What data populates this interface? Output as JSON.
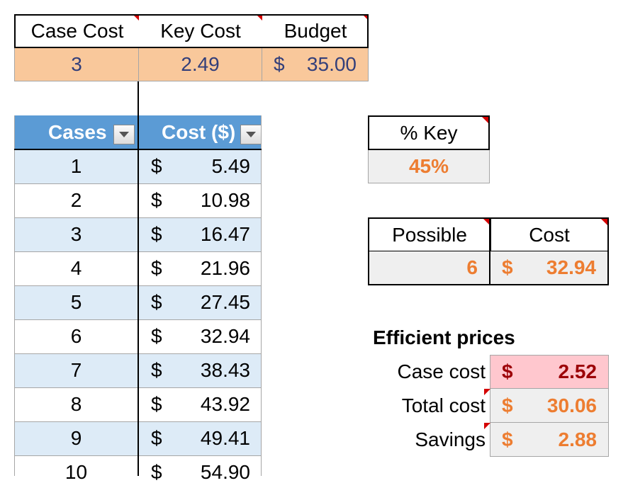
{
  "top_table": {
    "headers": [
      "Case Cost",
      "Key Cost",
      "Budget"
    ],
    "values": {
      "case_cost": "3",
      "key_cost": "2.49",
      "budget_symbol": "$",
      "budget": "35.00"
    }
  },
  "cases_table": {
    "headers": {
      "cases": "Cases",
      "cost": "Cost ($)"
    },
    "rows": [
      {
        "cases": "1",
        "sym": "$",
        "cost": "5.49"
      },
      {
        "cases": "2",
        "sym": "$",
        "cost": "10.98"
      },
      {
        "cases": "3",
        "sym": "$",
        "cost": "16.47"
      },
      {
        "cases": "4",
        "sym": "$",
        "cost": "21.96"
      },
      {
        "cases": "5",
        "sym": "$",
        "cost": "27.45"
      },
      {
        "cases": "6",
        "sym": "$",
        "cost": "32.94"
      },
      {
        "cases": "7",
        "sym": "$",
        "cost": "38.43"
      },
      {
        "cases": "8",
        "sym": "$",
        "cost": "43.92"
      },
      {
        "cases": "9",
        "sym": "$",
        "cost": "49.41"
      },
      {
        "cases": "10",
        "sym": "$",
        "cost": "54.90"
      }
    ]
  },
  "percent_key": {
    "header": "% Key",
    "value": "45%"
  },
  "possible_table": {
    "headers": {
      "possible": "Possible",
      "cost": "Cost"
    },
    "values": {
      "possible": "6",
      "sym": "$",
      "cost": "32.94"
    }
  },
  "efficient": {
    "title": "Efficient prices",
    "rows": [
      {
        "label": "Case cost",
        "sym": "$",
        "value": "2.52"
      },
      {
        "label": "Total cost",
        "sym": "$",
        "value": "30.06"
      },
      {
        "label": "Savings",
        "sym": "$",
        "value": "2.88"
      }
    ]
  },
  "colors": {
    "orange_fill": "#f9c89b",
    "blue_header": "#5b9bd5",
    "blue_band": "#ddebf7",
    "grey_fill": "#efefef",
    "orange_text": "#ed7d31",
    "red_fill": "#ffc7ce",
    "dark_red_text": "#9c0006",
    "navy_text": "#333f7a"
  }
}
